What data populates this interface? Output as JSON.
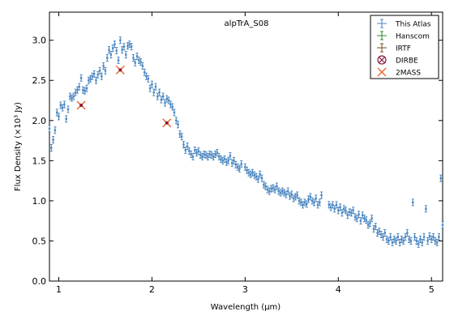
{
  "chart_data": {
    "type": "scatter",
    "title": "",
    "annotation": "alpTrA_S08",
    "xlabel": "Wavelength ($\\mu m$)",
    "ylabel": "Flux Density ($\\times10^{3}$ $Jy$)",
    "xlim": [
      0.9,
      5.12
    ],
    "ylim": [
      0.0,
      3.35
    ],
    "xticks": [
      "1",
      "2",
      "3",
      "4",
      "5"
    ],
    "yticks": [
      "0.0",
      "0.5",
      "1.0",
      "1.5",
      "2.0",
      "2.5",
      "3.0"
    ],
    "legend_position": "top-right",
    "colors": {
      "this_atlas": "#4a86c0",
      "hanscom": "#2e8b2e",
      "irtf": "#7a4a1a",
      "dirbe": "#8b1a3a",
      "twomass": "#e8652a"
    },
    "legend": [
      {
        "key": "this_atlas",
        "label": "This Atlas",
        "marker": "errbar"
      },
      {
        "key": "hanscom",
        "label": "Hanscom",
        "marker": "errbar"
      },
      {
        "key": "irtf",
        "label": "IRTF",
        "marker": "errbar"
      },
      {
        "key": "dirbe",
        "label": "DIRBE",
        "marker": "x-circle"
      },
      {
        "key": "twomass",
        "label": "2MASS",
        "marker": "x"
      }
    ],
    "series": [
      {
        "name": "This Atlas",
        "points": [
          [
            0.9,
            1.9
          ],
          [
            0.92,
            1.66
          ],
          [
            0.94,
            1.76
          ],
          [
            0.96,
            1.88
          ],
          [
            0.98,
            2.1
          ],
          [
            1.0,
            2.05
          ],
          [
            1.02,
            2.19
          ],
          [
            1.04,
            2.16
          ],
          [
            1.06,
            2.2
          ],
          [
            1.08,
            2.02
          ],
          [
            1.1,
            2.14
          ],
          [
            1.12,
            2.3
          ],
          [
            1.14,
            2.28
          ],
          [
            1.16,
            2.3
          ],
          [
            1.18,
            2.35
          ],
          [
            1.2,
            2.38
          ],
          [
            1.22,
            2.42
          ],
          [
            1.24,
            2.53
          ],
          [
            1.26,
            2.38
          ],
          [
            1.28,
            2.37
          ],
          [
            1.3,
            2.4
          ],
          [
            1.32,
            2.5
          ],
          [
            1.34,
            2.52
          ],
          [
            1.36,
            2.55
          ],
          [
            1.38,
            2.58
          ],
          [
            1.4,
            2.5
          ],
          [
            1.42,
            2.57
          ],
          [
            1.44,
            2.62
          ],
          [
            1.46,
            2.55
          ],
          [
            1.48,
            2.68
          ],
          [
            1.5,
            2.62
          ],
          [
            1.52,
            2.78
          ],
          [
            1.54,
            2.88
          ],
          [
            1.56,
            2.82
          ],
          [
            1.58,
            2.9
          ],
          [
            1.6,
            2.95
          ],
          [
            1.62,
            2.87
          ],
          [
            1.64,
            2.75
          ],
          [
            1.66,
            3.0
          ],
          [
            1.68,
            2.88
          ],
          [
            1.7,
            2.92
          ],
          [
            1.72,
            2.82
          ],
          [
            1.74,
            2.93
          ],
          [
            1.76,
            2.95
          ],
          [
            1.78,
            2.92
          ],
          [
            1.8,
            2.78
          ],
          [
            1.82,
            2.72
          ],
          [
            1.84,
            2.8
          ],
          [
            1.86,
            2.75
          ],
          [
            1.88,
            2.73
          ],
          [
            1.9,
            2.68
          ],
          [
            1.92,
            2.6
          ],
          [
            1.94,
            2.55
          ],
          [
            1.96,
            2.52
          ],
          [
            1.98,
            2.4
          ],
          [
            2.0,
            2.45
          ],
          [
            2.02,
            2.35
          ],
          [
            2.04,
            2.42
          ],
          [
            2.06,
            2.3
          ],
          [
            2.08,
            2.35
          ],
          [
            2.1,
            2.26
          ],
          [
            2.12,
            2.3
          ],
          [
            2.14,
            2.22
          ],
          [
            2.16,
            2.27
          ],
          [
            2.18,
            2.25
          ],
          [
            2.2,
            2.2
          ],
          [
            2.22,
            2.17
          ],
          [
            2.24,
            2.1
          ],
          [
            2.26,
            2.0
          ],
          [
            2.28,
            1.95
          ],
          [
            2.3,
            1.83
          ],
          [
            2.32,
            1.8
          ],
          [
            2.34,
            1.7
          ],
          [
            2.36,
            1.63
          ],
          [
            2.38,
            1.68
          ],
          [
            2.4,
            1.62
          ],
          [
            2.42,
            1.58
          ],
          [
            2.44,
            1.55
          ],
          [
            2.46,
            1.63
          ],
          [
            2.48,
            1.6
          ],
          [
            2.5,
            1.62
          ],
          [
            2.52,
            1.57
          ],
          [
            2.54,
            1.55
          ],
          [
            2.56,
            1.58
          ],
          [
            2.58,
            1.57
          ],
          [
            2.6,
            1.55
          ],
          [
            2.62,
            1.58
          ],
          [
            2.64,
            1.57
          ],
          [
            2.66,
            1.55
          ],
          [
            2.68,
            1.58
          ],
          [
            2.7,
            1.6
          ],
          [
            2.72,
            1.55
          ],
          [
            2.74,
            1.52
          ],
          [
            2.76,
            1.5
          ],
          [
            2.78,
            1.52
          ],
          [
            2.8,
            1.48
          ],
          [
            2.82,
            1.5
          ],
          [
            2.84,
            1.56
          ],
          [
            2.86,
            1.47
          ],
          [
            2.88,
            1.5
          ],
          [
            2.9,
            1.45
          ],
          [
            2.92,
            1.42
          ],
          [
            2.94,
            1.4
          ],
          [
            2.96,
            1.46
          ],
          [
            3.0,
            1.42
          ],
          [
            3.02,
            1.38
          ],
          [
            3.04,
            1.35
          ],
          [
            3.06,
            1.33
          ],
          [
            3.08,
            1.35
          ],
          [
            3.1,
            1.32
          ],
          [
            3.12,
            1.3
          ],
          [
            3.14,
            1.27
          ],
          [
            3.16,
            1.33
          ],
          [
            3.18,
            1.28
          ],
          [
            3.2,
            1.2
          ],
          [
            3.22,
            1.18
          ],
          [
            3.24,
            1.14
          ],
          [
            3.26,
            1.12
          ],
          [
            3.28,
            1.15
          ],
          [
            3.3,
            1.16
          ],
          [
            3.32,
            1.14
          ],
          [
            3.34,
            1.18
          ],
          [
            3.36,
            1.12
          ],
          [
            3.38,
            1.1
          ],
          [
            3.4,
            1.12
          ],
          [
            3.42,
            1.1
          ],
          [
            3.44,
            1.08
          ],
          [
            3.46,
            1.12
          ],
          [
            3.48,
            1.06
          ],
          [
            3.5,
            1.08
          ],
          [
            3.52,
            1.03
          ],
          [
            3.54,
            1.05
          ],
          [
            3.56,
            1.07
          ],
          [
            3.58,
            1.0
          ],
          [
            3.6,
            0.98
          ],
          [
            3.62,
            0.95
          ],
          [
            3.64,
            0.98
          ],
          [
            3.66,
            0.96
          ],
          [
            3.68,
            1.02
          ],
          [
            3.7,
            1.05
          ],
          [
            3.72,
            1.0
          ],
          [
            3.74,
            0.98
          ],
          [
            3.76,
            1.03
          ],
          [
            3.78,
            0.95
          ],
          [
            3.8,
            0.98
          ],
          [
            3.82,
            1.07
          ],
          [
            3.9,
            0.95
          ],
          [
            3.92,
            0.92
          ],
          [
            3.94,
            0.95
          ],
          [
            3.96,
            0.9
          ],
          [
            3.98,
            0.95
          ],
          [
            4.0,
            0.88
          ],
          [
            4.02,
            0.92
          ],
          [
            4.04,
            0.85
          ],
          [
            4.06,
            0.9
          ],
          [
            4.08,
            0.88
          ],
          [
            4.1,
            0.82
          ],
          [
            4.12,
            0.86
          ],
          [
            4.14,
            0.85
          ],
          [
            4.16,
            0.88
          ],
          [
            4.18,
            0.8
          ],
          [
            4.2,
            0.78
          ],
          [
            4.22,
            0.83
          ],
          [
            4.24,
            0.75
          ],
          [
            4.26,
            0.82
          ],
          [
            4.28,
            0.78
          ],
          [
            4.3,
            0.76
          ],
          [
            4.32,
            0.7
          ],
          [
            4.34,
            0.72
          ],
          [
            4.36,
            0.78
          ],
          [
            4.38,
            0.65
          ],
          [
            4.4,
            0.68
          ],
          [
            4.42,
            0.6
          ],
          [
            4.44,
            0.62
          ],
          [
            4.46,
            0.58
          ],
          [
            4.48,
            0.55
          ],
          [
            4.5,
            0.6
          ],
          [
            4.52,
            0.52
          ],
          [
            4.54,
            0.5
          ],
          [
            4.56,
            0.55
          ],
          [
            4.58,
            0.48
          ],
          [
            4.6,
            0.52
          ],
          [
            4.62,
            0.5
          ],
          [
            4.64,
            0.55
          ],
          [
            4.66,
            0.48
          ],
          [
            4.68,
            0.52
          ],
          [
            4.7,
            0.5
          ],
          [
            4.72,
            0.55
          ],
          [
            4.74,
            0.6
          ],
          [
            4.76,
            0.52
          ],
          [
            4.78,
            0.5
          ],
          [
            4.8,
            0.98
          ],
          [
            4.82,
            0.55
          ],
          [
            4.84,
            0.5
          ],
          [
            4.86,
            0.46
          ],
          [
            4.88,
            0.52
          ],
          [
            4.9,
            0.48
          ],
          [
            4.92,
            0.55
          ],
          [
            4.94,
            0.9
          ],
          [
            4.96,
            0.5
          ],
          [
            4.98,
            0.56
          ],
          [
            5.0,
            0.52
          ],
          [
            5.02,
            0.55
          ],
          [
            5.04,
            0.5
          ],
          [
            5.06,
            0.48
          ],
          [
            5.08,
            0.55
          ],
          [
            5.1,
            1.28
          ],
          [
            5.12,
            0.7
          ]
        ]
      },
      {
        "name": "2MASS",
        "points": [
          [
            1.24,
            2.19
          ],
          [
            1.66,
            2.63
          ],
          [
            2.16,
            1.97
          ]
        ]
      }
    ]
  }
}
